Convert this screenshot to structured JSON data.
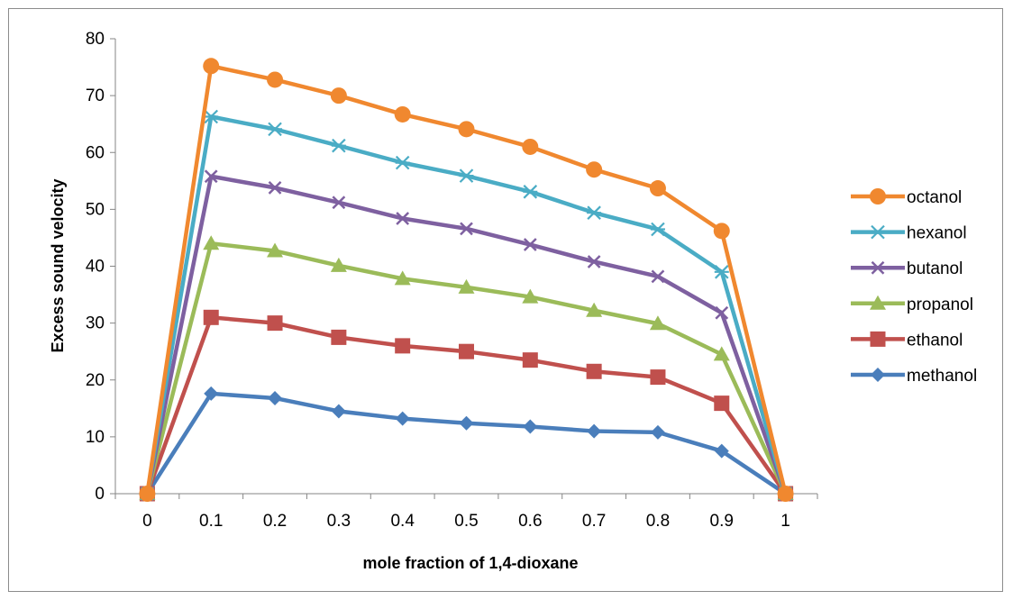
{
  "chart_data": {
    "type": "line",
    "title": "",
    "xlabel": "mole fraction of 1,4-dioxane",
    "ylabel": "Excess sound velocity",
    "x": [
      0,
      0.1,
      0.2,
      0.3,
      0.4,
      0.5,
      0.6,
      0.7,
      0.8,
      0.9,
      1
    ],
    "x_tick_labels": [
      "0",
      "0.1",
      "0.2",
      "0.3",
      "0.4",
      "0.5",
      "0.6",
      "0.7",
      "0.8",
      "0.9",
      "1"
    ],
    "ylim": [
      0,
      80
    ],
    "y_ticks": [
      0,
      10,
      20,
      30,
      40,
      50,
      60,
      70,
      80
    ],
    "grid": false,
    "legend_position": "right",
    "series": [
      {
        "name": "octanol",
        "color": "#F0882F",
        "marker": "circle",
        "values": [
          0,
          75.2,
          72.8,
          70.0,
          66.7,
          64.1,
          61.0,
          57.0,
          53.7,
          46.2,
          0
        ]
      },
      {
        "name": "hexanol",
        "color": "#4AACC5",
        "marker": "asterisk",
        "values": [
          0,
          66.3,
          64.1,
          61.2,
          58.2,
          55.9,
          53.1,
          49.4,
          46.5,
          39.0,
          0
        ]
      },
      {
        "name": "butanol",
        "color": "#7E60A0",
        "marker": "x",
        "values": [
          0,
          55.8,
          53.8,
          51.2,
          48.4,
          46.6,
          43.8,
          40.8,
          38.2,
          31.8,
          0
        ]
      },
      {
        "name": "propanol",
        "color": "#9BBB59",
        "marker": "triangle",
        "values": [
          0,
          44.0,
          42.7,
          40.1,
          37.8,
          36.3,
          34.6,
          32.2,
          29.9,
          24.5,
          0
        ]
      },
      {
        "name": "ethanol",
        "color": "#C0504D",
        "marker": "square",
        "values": [
          0,
          31.0,
          30.0,
          27.5,
          26.0,
          25.0,
          23.5,
          21.5,
          20.5,
          15.9,
          0
        ]
      },
      {
        "name": "methanol",
        "color": "#4A7EBB",
        "marker": "diamond",
        "values": [
          0,
          17.6,
          16.8,
          14.5,
          13.2,
          12.4,
          11.8,
          11.0,
          10.8,
          7.5,
          0
        ]
      }
    ]
  }
}
